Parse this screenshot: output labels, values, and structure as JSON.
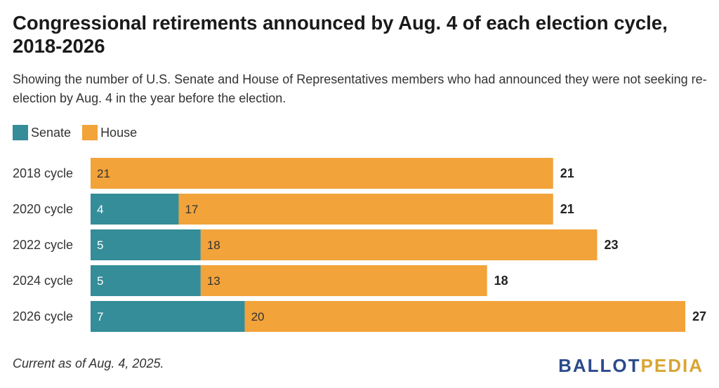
{
  "title": "Congressional retirements announced by Aug. 4 of each election cycle, 2018-2026",
  "subtitle": "Showing the number of U.S. Senate and House of Representatives members who had announced they were not seeking re-election by Aug. 4 in the year before the election.",
  "footnote": "Current as of Aug. 4, 2025.",
  "logo": {
    "part1": "BALLOT",
    "part2": "PEDIA",
    "color1": "#2b4a8c",
    "color2": "#d8a533"
  },
  "chart_data": {
    "type": "bar",
    "orientation": "horizontal",
    "stacked": true,
    "categories": [
      "2018 cycle",
      "2020 cycle",
      "2022 cycle",
      "2024 cycle",
      "2026 cycle"
    ],
    "series": [
      {
        "name": "Senate",
        "color": "#348d98",
        "values": [
          0,
          4,
          5,
          5,
          7
        ]
      },
      {
        "name": "House",
        "color": "#f2a33a",
        "values": [
          21,
          17,
          18,
          13,
          20
        ]
      }
    ],
    "totals": [
      21,
      21,
      23,
      18,
      27
    ],
    "xlim": [
      0,
      27
    ],
    "grid": false,
    "legend": "top-left"
  }
}
